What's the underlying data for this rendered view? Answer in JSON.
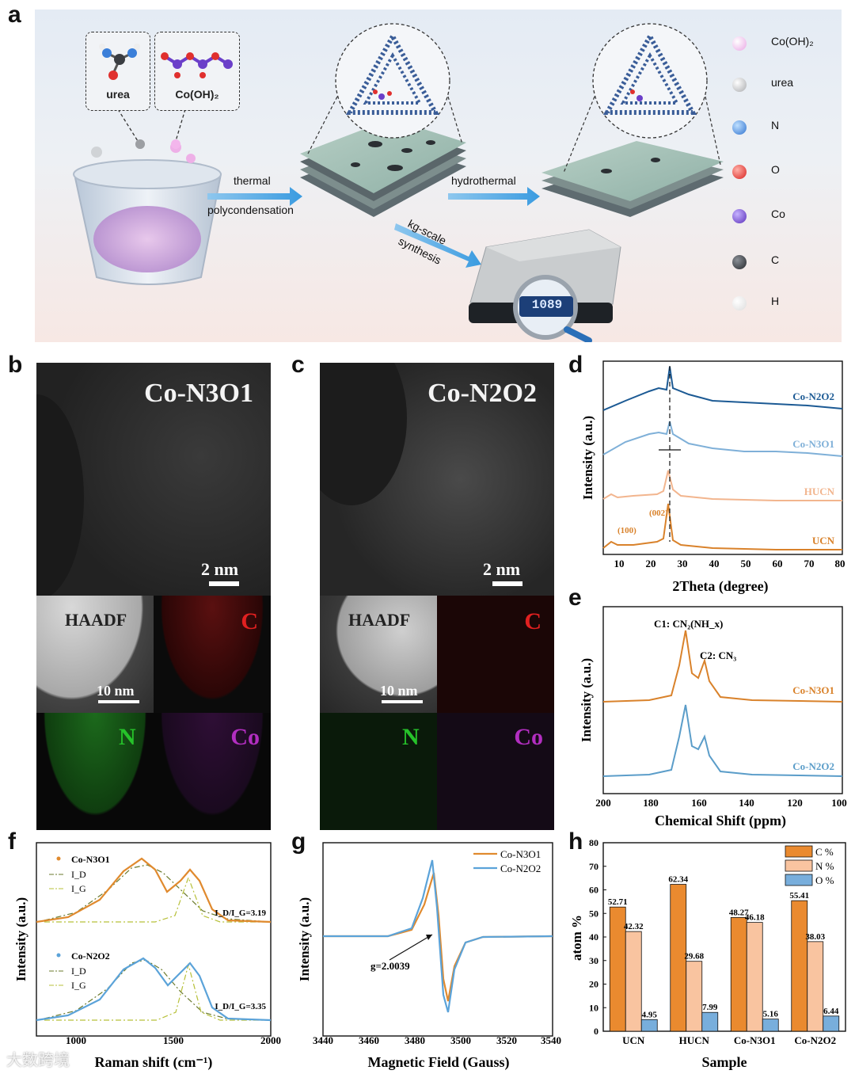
{
  "panel_labels": {
    "a": "a",
    "b": "b",
    "c": "c",
    "d": "d",
    "e": "e",
    "f": "f",
    "g": "g",
    "h": "h"
  },
  "panel_a": {
    "box_urea": "urea",
    "box_cooh": "Co(OH)₂",
    "arrow1_top": "thermal",
    "arrow1_bottom": "polycondensation",
    "arrow2": "hydrothermal",
    "arrow3_line1": "kg-scale",
    "arrow3_line2": "synthesis",
    "scale_readout": "1089",
    "legend": [
      {
        "label": "Co(OH)₂",
        "color": "#e9a6e4"
      },
      {
        "label": "urea",
        "color": "#c4c6c8"
      },
      {
        "label": "N",
        "color": "#3b7fd9"
      },
      {
        "label": "O",
        "color": "#e0302e"
      },
      {
        "label": "Co",
        "color": "#6b3fc9"
      },
      {
        "label": "C",
        "color": "#3a3d42"
      },
      {
        "label": "H",
        "color": "#f7f7f7"
      }
    ]
  },
  "panel_b": {
    "title": "Co-N3O1",
    "scale_top": "2 nm",
    "haadf": "HAADF",
    "scale_bottom": "10 nm",
    "map_c": "C",
    "map_n": "N",
    "map_co": "Co"
  },
  "panel_c": {
    "title": "Co-N2O2",
    "scale_top": "2 nm",
    "haadf": "HAADF",
    "scale_bottom": "10 nm",
    "map_c": "C",
    "map_n": "N",
    "map_co": "Co"
  },
  "chart_data": [
    {
      "panel": "d",
      "type": "line",
      "xlabel": "2Theta (degree)",
      "ylabel": "Intensity (a.u.)",
      "xlim": [
        5,
        80
      ],
      "xticks": [
        10,
        20,
        30,
        40,
        50,
        60,
        70,
        80
      ],
      "series": [
        {
          "name": "Co-N2O2",
          "color": "#1c5a94"
        },
        {
          "name": "Co-N3O1",
          "color": "#7fb0d8"
        },
        {
          "name": "HUCN",
          "color": "#f2b58e"
        },
        {
          "name": "UCN",
          "color": "#d9822b"
        }
      ],
      "annotations": [
        "(100)",
        "(002)"
      ],
      "peak_position": 27.4
    },
    {
      "panel": "e",
      "type": "line",
      "xlabel": "Chemical Shift (ppm)",
      "ylabel": "Intensity (a.u.)",
      "xlim": [
        200,
        100
      ],
      "xticks": [
        200,
        180,
        160,
        140,
        120,
        100
      ],
      "series": [
        {
          "name": "Co-N3O1",
          "color": "#d9822b"
        },
        {
          "name": "Co-N2O2",
          "color": "#5b9dc9"
        }
      ],
      "peaks": [
        {
          "label": "C1: CN₂(NH_x)",
          "ppm": 164.5
        },
        {
          "label": "C2: CN₃",
          "ppm": 157
        }
      ]
    },
    {
      "panel": "f",
      "type": "line",
      "xlabel": "Raman shift (cm⁻¹)",
      "ylabel": "Intensity (a.u.)",
      "xlim": [
        800,
        2000
      ],
      "xticks": [
        1000,
        1500,
        2000
      ],
      "legends": [
        {
          "title": "Co-N3O1",
          "items": [
            "I_D",
            "I_G"
          ]
        },
        {
          "title": "Co-N2O2",
          "items": [
            "I_D",
            "I_G"
          ]
        }
      ],
      "ratios": [
        "I_D/I_G=3.19",
        "I_D/I_G=3.35"
      ],
      "bands": {
        "D": 1350,
        "G": 1580
      }
    },
    {
      "panel": "g",
      "type": "line",
      "xlabel": "Magnetic Field (Gauss)",
      "ylabel": "Intensity (a.u.)",
      "xlim": [
        3440,
        3540
      ],
      "xticks": [
        3440,
        3460,
        3480,
        3500,
        3520,
        3540
      ],
      "series": [
        {
          "name": "Co-N3O1",
          "color": "#e08a2e"
        },
        {
          "name": "Co-N2O2",
          "color": "#5ba3d9"
        }
      ],
      "annotation": "g=2.0039"
    },
    {
      "panel": "h",
      "type": "bar",
      "xlabel": "Sample",
      "ylabel": "atom %",
      "ylim": [
        0,
        80
      ],
      "yticks": [
        0,
        10,
        20,
        30,
        40,
        50,
        60,
        70,
        80
      ],
      "categories": [
        "UCN",
        "HUCN",
        "Co-N3O1",
        "Co-N2O2"
      ],
      "series": [
        {
          "name": "C %",
          "color": "#ea8a2f",
          "values": [
            52.71,
            62.34,
            48.27,
            55.41
          ]
        },
        {
          "name": "N %",
          "color": "#f9c4a0",
          "values": [
            42.32,
            29.68,
            46.18,
            38.03
          ]
        },
        {
          "name": "O %",
          "color": "#78aedc",
          "values": [
            4.95,
            7.99,
            5.16,
            6.44
          ]
        }
      ]
    }
  ],
  "watermark": "大数跨境"
}
